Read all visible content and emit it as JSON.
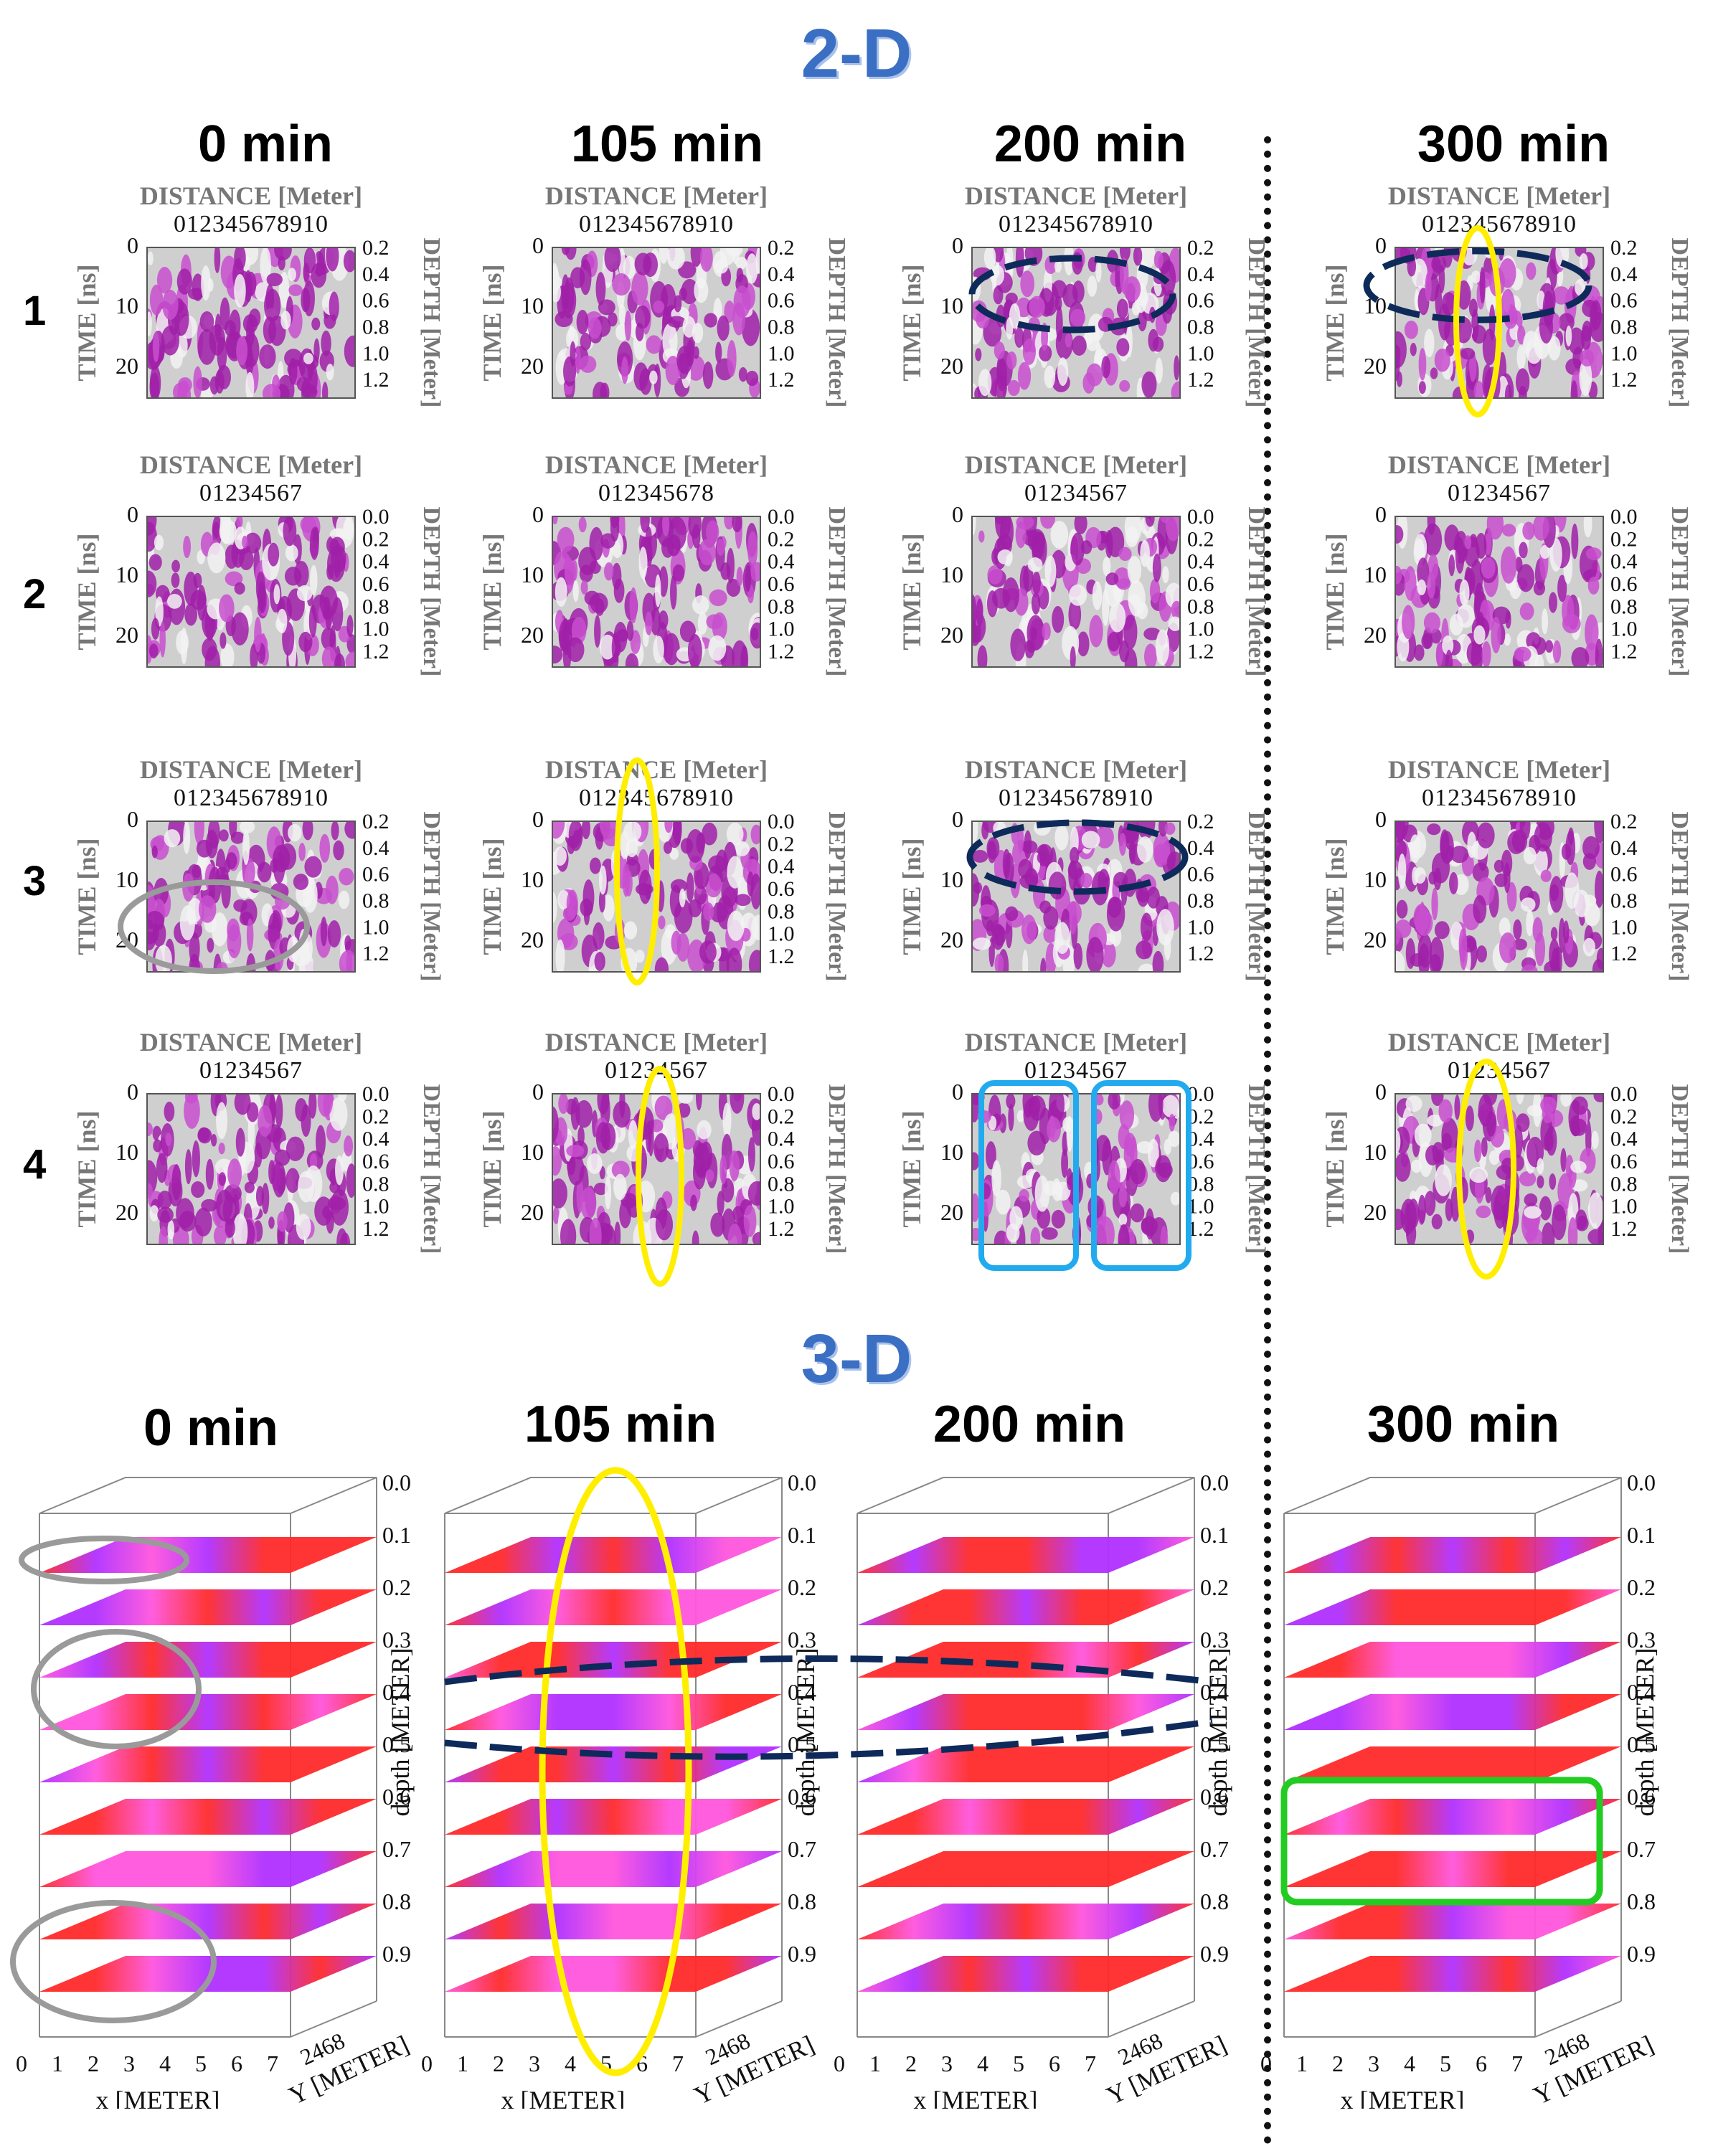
{
  "titles": {
    "two_d": "2-D",
    "three_d": "3-D"
  },
  "times_2d": [
    "0 min",
    "105 min",
    "200 min",
    "300 min"
  ],
  "times_3d": [
    "0 min",
    "105 min",
    "200 min",
    "300 min"
  ],
  "rows": [
    "1",
    "2",
    "3",
    "4"
  ],
  "radargram": {
    "top_axis_label": "DISTANCE [Meter]",
    "left_axis_label": "TIME [ns]",
    "right_axis_label": "DEPTH [Meter]",
    "time_ticks": [
      "0",
      "10",
      "20"
    ],
    "depth_ticks_full": [
      "0.0",
      "0.2",
      "0.4",
      "0.6",
      "0.8",
      "1.0",
      "1.2"
    ],
    "depth_ticks_short": [
      "0.2",
      "0.4",
      "0.6",
      "0.8",
      "1.0",
      "1.2"
    ],
    "dist_ticks_10": "012345678910",
    "dist_ticks_7": "01234567",
    "dist_ticks_8": "012345678"
  },
  "cube": {
    "depth_label": "depth [METER]",
    "x_label": "x [METER]",
    "y_label": "Y [METER]",
    "x_ticks": [
      "0",
      "1",
      "2",
      "3",
      "4",
      "5",
      "6",
      "7"
    ],
    "y_ticks": "2468",
    "depth_ticks": [
      "0.0",
      "0.1",
      "0.2",
      "0.3",
      "0.4",
      "0.5",
      "0.6",
      "0.7",
      "0.8",
      "0.9"
    ]
  },
  "colors": {
    "title_blue": "#3b6fc4",
    "magenta": "#a020a8",
    "gray_mark": "#9a9a9a",
    "yellow_mark": "#ffee00",
    "navy_mark": "#0e2a5a",
    "cyan_mark": "#22aaee",
    "green_mark": "#22cc22",
    "slice_red": "#ff2a2a",
    "slice_pink": "#ff55dd"
  }
}
